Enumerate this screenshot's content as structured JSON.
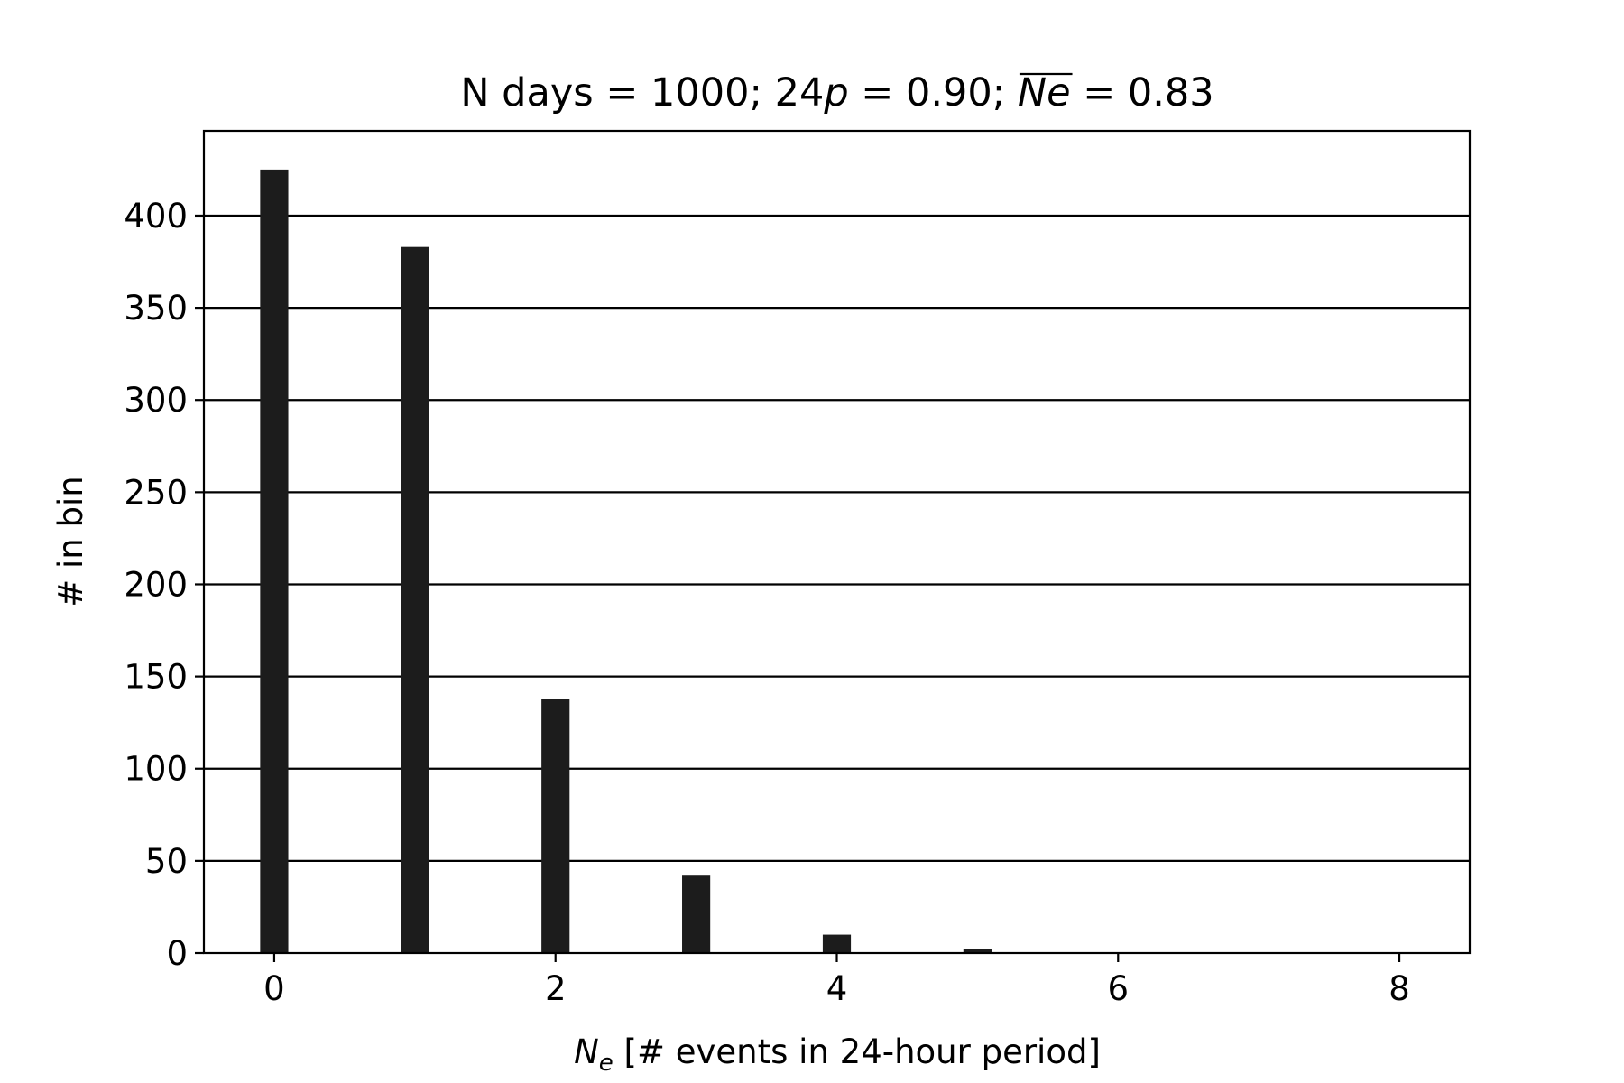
{
  "chart_data": {
    "type": "bar",
    "title": {
      "prefix": "N days = 1000; 24",
      "p_symbol": "p",
      "p_eq": " = 0.90; ",
      "mean_symbol": "Ne",
      "mean_eq": " = 0.83"
    },
    "xlabel": {
      "symbol": "N",
      "subscript": "e",
      "text": " [# events in 24-hour period]"
    },
    "ylabel": "# in bin",
    "x": [
      0,
      1,
      2,
      3,
      4,
      5,
      6,
      7,
      8
    ],
    "values": [
      425,
      383,
      138,
      42,
      10,
      2,
      0,
      0,
      0
    ],
    "bar_width": 0.2,
    "xlim": [
      -0.5,
      8.5
    ],
    "ylim": [
      0,
      446
    ],
    "xticks": [
      0,
      2,
      4,
      6,
      8
    ],
    "yticks": [
      0,
      50,
      100,
      150,
      200,
      250,
      300,
      350,
      400
    ],
    "grid": "horizontal",
    "colors": {
      "bar": "#1c1c1c",
      "grid": "#000000",
      "axes": "#000000"
    }
  }
}
